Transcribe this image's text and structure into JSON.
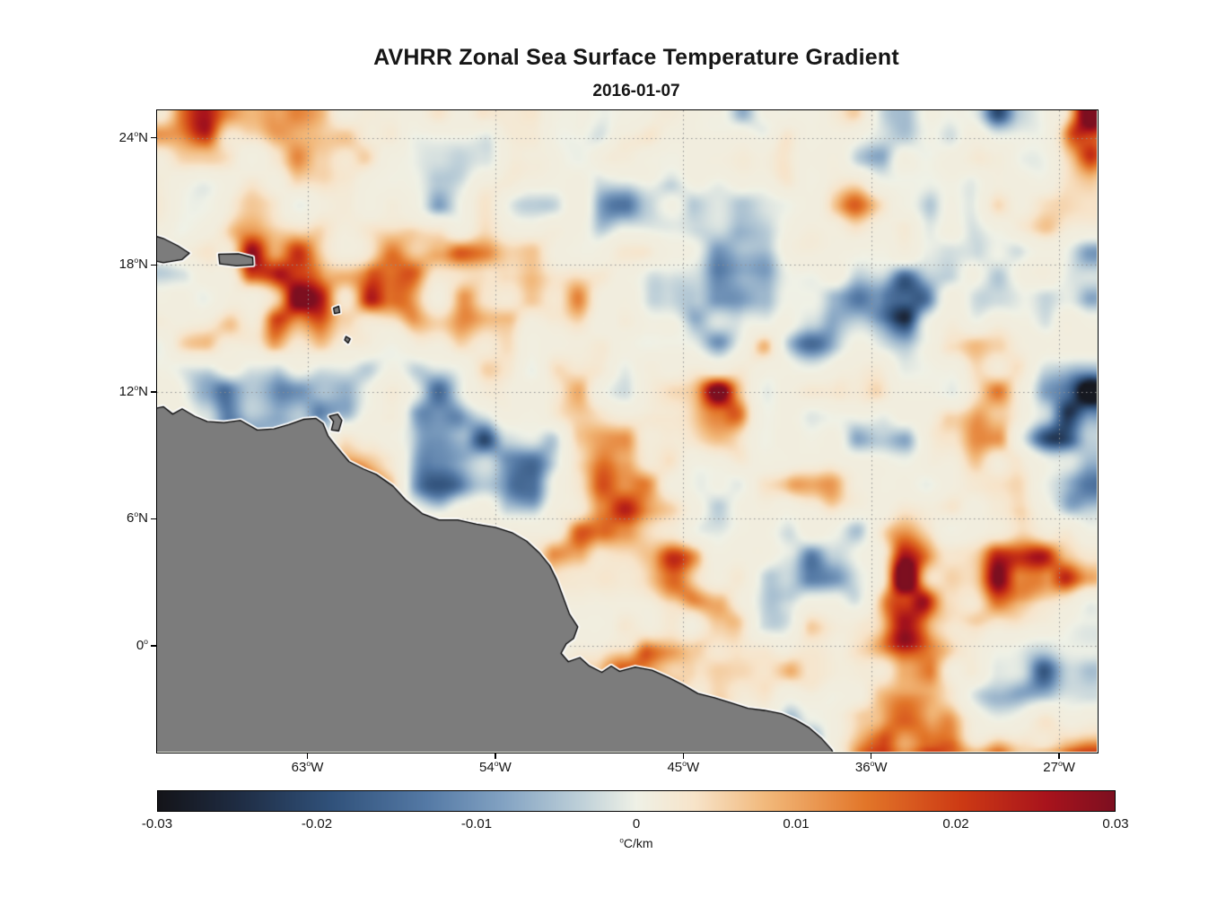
{
  "figure": {
    "title": "AVHRR Zonal Sea Surface Temperature Gradient",
    "subtitle": "2016-01-07",
    "background": "#ffffff",
    "text_color": "#161616",
    "axes_color": "#000000"
  },
  "chart_data": {
    "type": "heatmap",
    "title": "AVHRR Zonal Sea Surface Temperature Gradient",
    "subtitle": "2016-01-07",
    "projection": "lon-lat",
    "x_axis": {
      "tick_labels": [
        "63°W",
        "54°W",
        "45°W",
        "36°W",
        "27°W"
      ],
      "tick_lons": [
        -63,
        -54,
        -45,
        -36,
        -27
      ],
      "lon_range": [
        -70.2,
        -25.2
      ]
    },
    "y_axis": {
      "tick_labels": [
        "24°N",
        "18°N",
        "12°N",
        "6°N",
        "0°"
      ],
      "tick_lats": [
        24,
        18,
        12,
        6,
        0
      ],
      "lat_range": [
        -5.0,
        25.3
      ]
    },
    "grid": {
      "show": true,
      "style": "dotted",
      "color": "#8f8f8f"
    },
    "colorbar": {
      "orientation": "horizontal",
      "label": "°C/km",
      "tick_labels": [
        "-0.03",
        "-0.02",
        "-0.01",
        "0",
        "0.01",
        "0.02",
        "0.03"
      ],
      "tick_values": [
        -0.03,
        -0.02,
        -0.01,
        0,
        0.01,
        0.02,
        0.03
      ],
      "value_range": [
        -0.03,
        0.03
      ]
    },
    "colormap_stops": [
      {
        "t": 0.0,
        "c": "#141419"
      },
      {
        "t": 0.08,
        "c": "#1e2b41"
      },
      {
        "t": 0.18,
        "c": "#30517a"
      },
      {
        "t": 0.28,
        "c": "#5479a5"
      },
      {
        "t": 0.36,
        "c": "#82a2c2"
      },
      {
        "t": 0.44,
        "c": "#bdcfd8"
      },
      {
        "t": 0.5,
        "c": "#eff1e6"
      },
      {
        "t": 0.56,
        "c": "#f7e4ca"
      },
      {
        "t": 0.64,
        "c": "#f1b677"
      },
      {
        "t": 0.74,
        "c": "#e27629"
      },
      {
        "t": 0.84,
        "c": "#cd3a14"
      },
      {
        "t": 0.93,
        "c": "#a8131c"
      },
      {
        "t": 1.0,
        "c": "#7d0f20"
      }
    ],
    "field": {
      "kind": "procedural-approximation-of-observed-gradient-field",
      "seed": 20160107,
      "octave_cells": [
        26,
        13,
        6.5
      ],
      "octave_weights": [
        0.5,
        0.32,
        0.18
      ],
      "shape_gain": 1.5,
      "shape_power": 2.2,
      "bias": 0.001
    },
    "land": {
      "fill": "#7c7c7c",
      "outline": "#000000",
      "coast_halo": "#ffffff",
      "polygons": {
        "south-america-mainland": [
          [
            -70.6,
            11.15
          ],
          [
            -69.9,
            11.3
          ],
          [
            -69.45,
            10.95
          ],
          [
            -69.0,
            11.2
          ],
          [
            -68.4,
            10.85
          ],
          [
            -67.8,
            10.6
          ],
          [
            -67.0,
            10.55
          ],
          [
            -66.2,
            10.65
          ],
          [
            -65.4,
            10.2
          ],
          [
            -64.6,
            10.25
          ],
          [
            -63.9,
            10.45
          ],
          [
            -63.2,
            10.7
          ],
          [
            -62.6,
            10.75
          ],
          [
            -62.25,
            10.5
          ],
          [
            -62.0,
            9.9
          ],
          [
            -61.6,
            9.4
          ],
          [
            -61.0,
            8.7
          ],
          [
            -60.3,
            8.35
          ],
          [
            -59.7,
            8.1
          ],
          [
            -58.9,
            7.55
          ],
          [
            -58.3,
            6.9
          ],
          [
            -57.5,
            6.25
          ],
          [
            -56.7,
            5.95
          ],
          [
            -55.8,
            5.95
          ],
          [
            -54.9,
            5.75
          ],
          [
            -54.0,
            5.6
          ],
          [
            -53.2,
            5.35
          ],
          [
            -52.5,
            4.95
          ],
          [
            -51.9,
            4.4
          ],
          [
            -51.4,
            3.8
          ],
          [
            -51.05,
            3.1
          ],
          [
            -50.75,
            2.3
          ],
          [
            -50.45,
            1.5
          ],
          [
            -50.05,
            0.9
          ],
          [
            -50.25,
            0.35
          ],
          [
            -50.6,
            0.1
          ],
          [
            -50.85,
            -0.35
          ],
          [
            -50.5,
            -0.75
          ],
          [
            -49.95,
            -0.55
          ],
          [
            -49.5,
            -0.95
          ],
          [
            -48.9,
            -1.25
          ],
          [
            -48.45,
            -0.95
          ],
          [
            -48.05,
            -1.2
          ],
          [
            -47.3,
            -1.0
          ],
          [
            -46.5,
            -1.15
          ],
          [
            -45.7,
            -1.5
          ],
          [
            -45.0,
            -1.85
          ],
          [
            -44.3,
            -2.25
          ],
          [
            -43.5,
            -2.45
          ],
          [
            -42.7,
            -2.7
          ],
          [
            -41.9,
            -2.95
          ],
          [
            -41.1,
            -3.05
          ],
          [
            -40.3,
            -3.2
          ],
          [
            -39.6,
            -3.5
          ],
          [
            -39.0,
            -3.85
          ],
          [
            -38.4,
            -4.35
          ],
          [
            -37.9,
            -4.9
          ],
          [
            -37.55,
            -5.6
          ],
          [
            -70.6,
            -5.6
          ]
        ],
        "hispaniola-east": [
          [
            -70.6,
            19.45
          ],
          [
            -69.9,
            19.25
          ],
          [
            -69.2,
            18.9
          ],
          [
            -68.65,
            18.55
          ],
          [
            -69.0,
            18.25
          ],
          [
            -69.9,
            18.1
          ],
          [
            -70.6,
            18.25
          ]
        ],
        "puerto-rico": [
          [
            -67.25,
            18.5
          ],
          [
            -66.3,
            18.52
          ],
          [
            -65.62,
            18.35
          ],
          [
            -65.6,
            18.0
          ],
          [
            -66.4,
            17.95
          ],
          [
            -67.2,
            18.05
          ]
        ],
        "trinidad": [
          [
            -61.95,
            10.85
          ],
          [
            -61.55,
            10.95
          ],
          [
            -61.35,
            10.65
          ],
          [
            -61.5,
            10.15
          ],
          [
            -61.85,
            10.2
          ],
          [
            -61.75,
            10.6
          ]
        ],
        "guadeloupe-dominica": [
          [
            -61.75,
            15.95
          ],
          [
            -61.5,
            16.05
          ],
          [
            -61.45,
            15.75
          ],
          [
            -61.7,
            15.7
          ]
        ],
        "martinique": [
          [
            -61.15,
            14.62
          ],
          [
            -60.95,
            14.5
          ],
          [
            -61.05,
            14.3
          ],
          [
            -61.22,
            14.45
          ]
        ]
      }
    }
  }
}
